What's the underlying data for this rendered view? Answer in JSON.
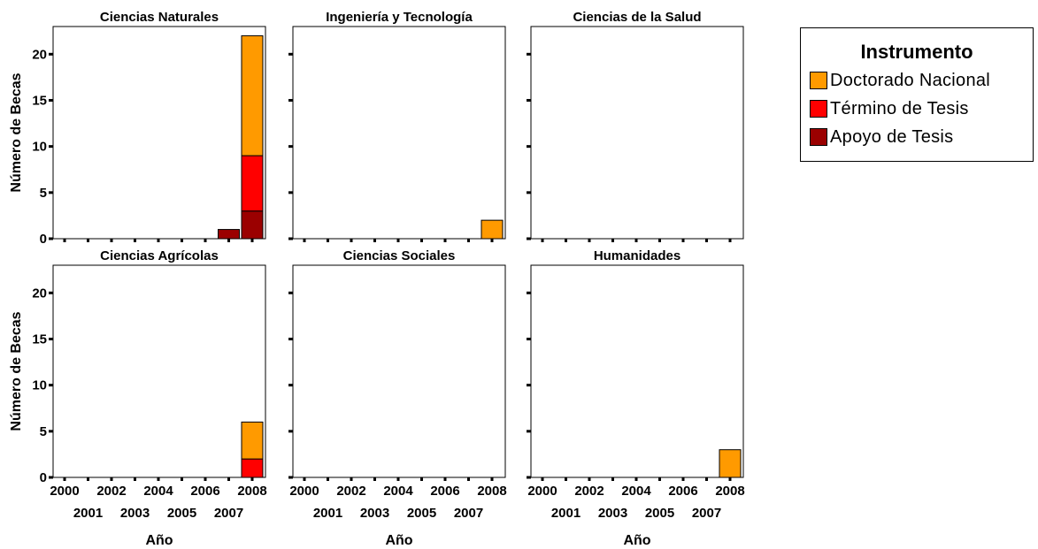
{
  "chart_data": {
    "type": "bar",
    "stacked": true,
    "x": [
      "2000",
      "2001",
      "2002",
      "2003",
      "2004",
      "2005",
      "2006",
      "2007",
      "2008"
    ],
    "xlabel": "Año",
    "ylabel": "Número de Becas",
    "ylim": [
      0,
      23
    ],
    "yticks": [
      0,
      5,
      10,
      15,
      20
    ],
    "legend": {
      "title": "Instrumento",
      "placement": "right",
      "entries": [
        {
          "name": "Doctorado Nacional",
          "color": "#ff9a00"
        },
        {
          "name": "Término de Tesis",
          "color": "#ff0000"
        },
        {
          "name": "Apoyo de Tesis",
          "color": "#9b0000"
        }
      ]
    },
    "panels": [
      {
        "title": "Ciencias Naturales",
        "series": [
          {
            "name": "Apoyo de Tesis",
            "color": "#9b0000",
            "values": [
              0,
              0,
              0,
              0,
              0,
              0,
              0,
              1,
              3
            ]
          },
          {
            "name": "Término de Tesis",
            "color": "#ff0000",
            "values": [
              0,
              0,
              0,
              0,
              0,
              0,
              0,
              0,
              6
            ]
          },
          {
            "name": "Doctorado Nacional",
            "color": "#ff9a00",
            "values": [
              0,
              0,
              0,
              0,
              0,
              0,
              0,
              0,
              13
            ]
          }
        ]
      },
      {
        "title": "Ingeniería y Tecnología",
        "series": [
          {
            "name": "Apoyo de Tesis",
            "color": "#9b0000",
            "values": [
              0,
              0,
              0,
              0,
              0,
              0,
              0,
              0,
              0
            ]
          },
          {
            "name": "Término de Tesis",
            "color": "#ff0000",
            "values": [
              0,
              0,
              0,
              0,
              0,
              0,
              0,
              0,
              0
            ]
          },
          {
            "name": "Doctorado Nacional",
            "color": "#ff9a00",
            "values": [
              0,
              0,
              0,
              0,
              0,
              0,
              0,
              0,
              2
            ]
          }
        ]
      },
      {
        "title": "Ciencias de la Salud",
        "series": [
          {
            "name": "Apoyo de Tesis",
            "color": "#9b0000",
            "values": [
              0,
              0,
              0,
              0,
              0,
              0,
              0,
              0,
              0
            ]
          },
          {
            "name": "Término de Tesis",
            "color": "#ff0000",
            "values": [
              0,
              0,
              0,
              0,
              0,
              0,
              0,
              0,
              0
            ]
          },
          {
            "name": "Doctorado Nacional",
            "color": "#ff9a00",
            "values": [
              0,
              0,
              0,
              0,
              0,
              0,
              0,
              0,
              0
            ]
          }
        ]
      },
      {
        "title": "Ciencias Agrícolas",
        "series": [
          {
            "name": "Apoyo de Tesis",
            "color": "#9b0000",
            "values": [
              0,
              0,
              0,
              0,
              0,
              0,
              0,
              0,
              0
            ]
          },
          {
            "name": "Término de Tesis",
            "color": "#ff0000",
            "values": [
              0,
              0,
              0,
              0,
              0,
              0,
              0,
              0,
              2
            ]
          },
          {
            "name": "Doctorado Nacional",
            "color": "#ff9a00",
            "values": [
              0,
              0,
              0,
              0,
              0,
              0,
              0,
              0,
              4
            ]
          }
        ]
      },
      {
        "title": "Ciencias Sociales",
        "series": [
          {
            "name": "Apoyo de Tesis",
            "color": "#9b0000",
            "values": [
              0,
              0,
              0,
              0,
              0,
              0,
              0,
              0,
              0
            ]
          },
          {
            "name": "Término de Tesis",
            "color": "#ff0000",
            "values": [
              0,
              0,
              0,
              0,
              0,
              0,
              0,
              0,
              0
            ]
          },
          {
            "name": "Doctorado Nacional",
            "color": "#ff9a00",
            "values": [
              0,
              0,
              0,
              0,
              0,
              0,
              0,
              0,
              0
            ]
          }
        ]
      },
      {
        "title": "Humanidades",
        "series": [
          {
            "name": "Apoyo de Tesis",
            "color": "#9b0000",
            "values": [
              0,
              0,
              0,
              0,
              0,
              0,
              0,
              0,
              0
            ]
          },
          {
            "name": "Término de Tesis",
            "color": "#ff0000",
            "values": [
              0,
              0,
              0,
              0,
              0,
              0,
              0,
              0,
              0
            ]
          },
          {
            "name": "Doctorado Nacional",
            "color": "#ff9a00",
            "values": [
              0,
              0,
              0,
              0,
              0,
              0,
              0,
              0,
              3
            ]
          }
        ]
      }
    ]
  }
}
